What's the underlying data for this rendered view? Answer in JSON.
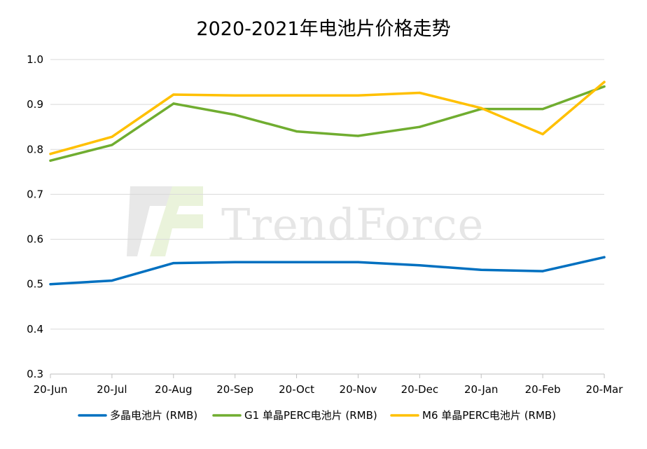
{
  "chart_data": {
    "type": "line",
    "title": "2020-2021年电池片价格走势",
    "xlabel": "",
    "ylabel": "",
    "categories": [
      "20-Jun",
      "20-Jul",
      "20-Aug",
      "20-Sep",
      "20-Oct",
      "20-Nov",
      "20-Dec",
      "20-Jan",
      "20-Feb",
      "20-Mar"
    ],
    "ylim": [
      0.3,
      1.0
    ],
    "yticks": [
      "0.3",
      "0.4",
      "0.5",
      "0.6",
      "0.7",
      "0.8",
      "0.9",
      "1.0"
    ],
    "grid": true,
    "legend_position": "bottom",
    "series": [
      {
        "name": "多晶电池片 (RMB)",
        "color": "#0070c0",
        "values": [
          0.5,
          0.508,
          0.547,
          0.549,
          0.549,
          0.549,
          0.542,
          0.532,
          0.529,
          0.56
        ]
      },
      {
        "name": "G1 单晶PERC电池片 (RMB)",
        "color": "#70ad30",
        "values": [
          0.775,
          0.81,
          0.902,
          0.877,
          0.84,
          0.83,
          0.85,
          0.89,
          0.89,
          0.94
        ]
      },
      {
        "name": "M6 单晶PERC电池片 (RMB)",
        "color": "#ffc000",
        "values": [
          0.79,
          0.828,
          0.922,
          0.92,
          0.92,
          0.92,
          0.926,
          0.892,
          0.834,
          0.95
        ]
      }
    ]
  },
  "watermark": {
    "text": "TrendForce",
    "icon": "trendforce-logo-icon"
  }
}
